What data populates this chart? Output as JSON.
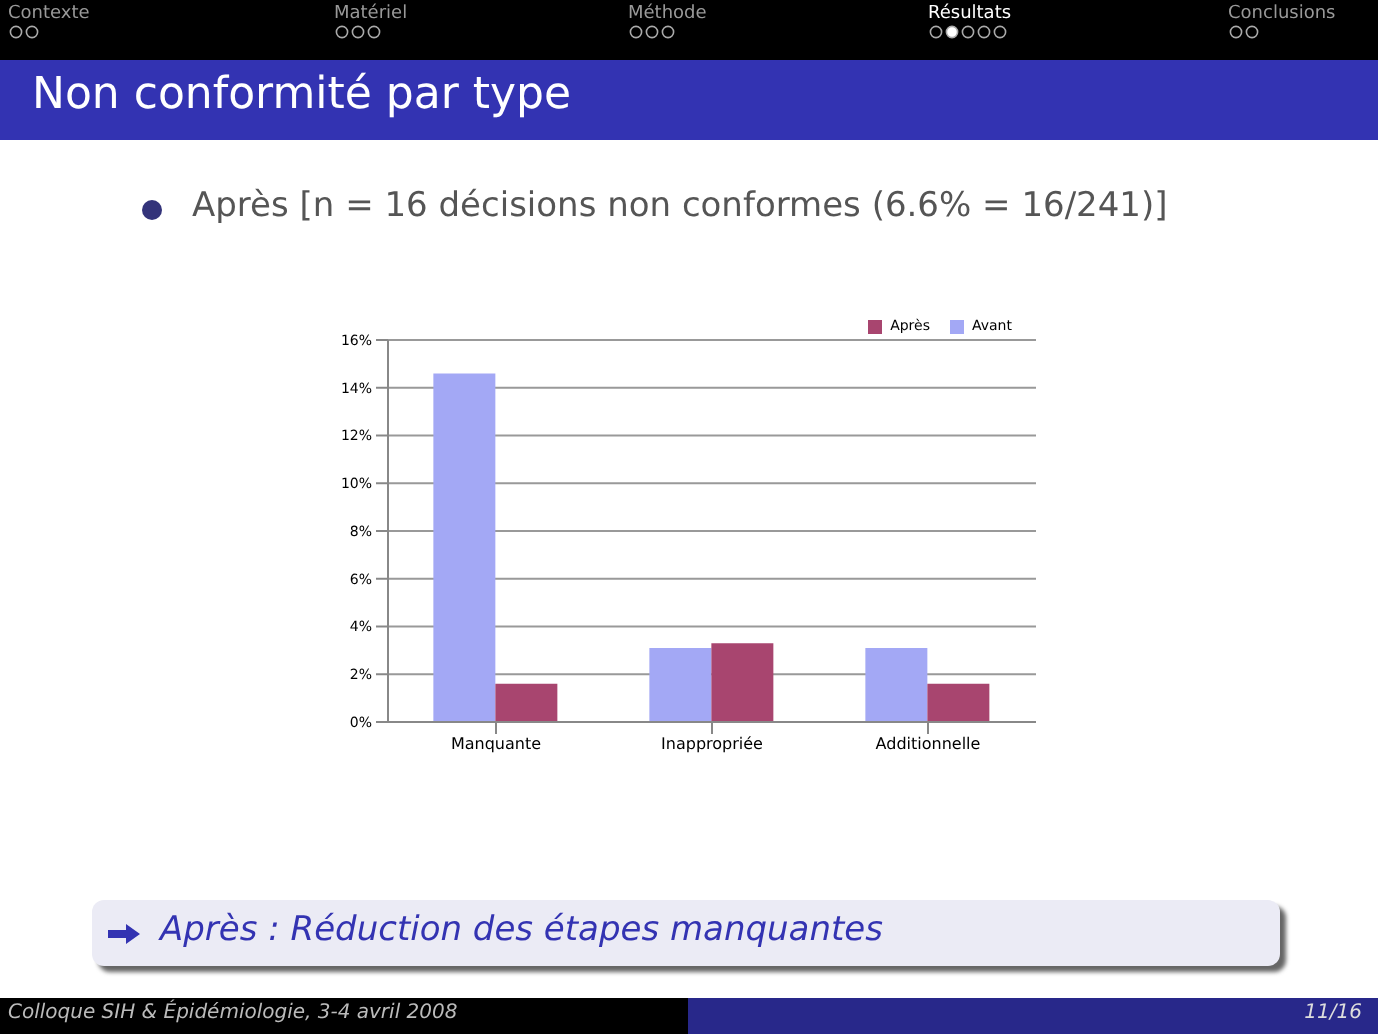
{
  "chart_data": {
    "type": "bar",
    "title": "Non conformité par type",
    "subtitle": "Après [n = 16 décisions non conformes (6.6% = 16/241)]",
    "annotations": [
      "Contexte",
      "Matériel",
      "Méthode",
      "Résultats",
      "Conclusions",
      "Après : Réduction des étapes manquantes",
      "Colloque SIH & Épidémiologie, 3-4 avril 2008",
      "11/16"
    ],
    "categories": [
      "Manquante",
      "Inappropriée",
      "Additionnelle"
    ],
    "series": [
      {
        "name": "Avant",
        "color": "#a3a8f5",
        "values": [
          14.6,
          3.1,
          3.1
        ]
      },
      {
        "name": "Après",
        "color": "#a8456f",
        "values": [
          1.6,
          3.3,
          1.6
        ]
      }
    ],
    "ylim": [
      0,
      16
    ],
    "yticks": [
      {
        "value": 0,
        "label": "0%"
      },
      {
        "value": 2,
        "label": "2%"
      },
      {
        "value": 4,
        "label": "4%"
      },
      {
        "value": 6,
        "label": "6%"
      },
      {
        "value": 8,
        "label": "8%"
      },
      {
        "value": 10,
        "label": "10%"
      },
      {
        "value": 12,
        "label": "12%"
      },
      {
        "value": 14,
        "label": "14%"
      },
      {
        "value": 16,
        "label": "16%"
      }
    ],
    "grid": "y",
    "legend": "top right"
  }
}
